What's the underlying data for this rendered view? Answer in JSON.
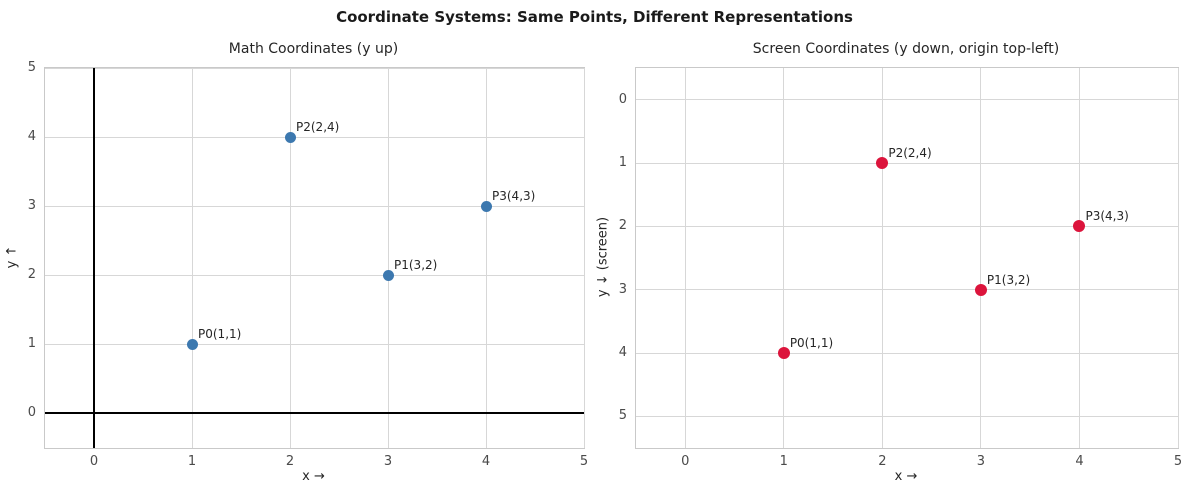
{
  "figure": {
    "title": "Coordinate Systems: Same Points, Different Representations"
  },
  "colors": {
    "background": "#ffffff",
    "grid": "#d7d7d7",
    "spine": "#c9c9c9",
    "zero_line": "#000000",
    "tick_text": "#4a4a4a",
    "label_text": "#262626",
    "title_text": "#1a1a1a",
    "math_point": "#3c78af",
    "screen_point": "#dc143c"
  },
  "chart_data": [
    {
      "type": "scatter",
      "title": "Math Coordinates (y up)",
      "xlabel": "x →",
      "ylabel": "y ↑",
      "xlim": [
        -0.5,
        5
      ],
      "ylim": [
        -0.5,
        5
      ],
      "y_inverted": false,
      "grid": true,
      "zero_axis_lines": true,
      "xticks": [
        0,
        1,
        2,
        3,
        4,
        5
      ],
      "yticks": [
        0,
        1,
        2,
        3,
        4,
        5
      ],
      "point_color": "#3c78af",
      "point_size": 11,
      "points": [
        {
          "label": "P0(1,1)",
          "x": 1,
          "y": 1
        },
        {
          "label": "P1(3,2)",
          "x": 3,
          "y": 2
        },
        {
          "label": "P2(2,4)",
          "x": 2,
          "y": 4
        },
        {
          "label": "P3(4,3)",
          "x": 4,
          "y": 3
        }
      ]
    },
    {
      "type": "scatter",
      "title": "Screen Coordinates (y down, origin top-left)",
      "xlabel": "x →",
      "ylabel": "y ↓ (screen)",
      "xlim": [
        -0.5,
        5
      ],
      "ylim": [
        -0.5,
        5.5
      ],
      "y_inverted": true,
      "grid": true,
      "zero_axis_lines": false,
      "xticks": [
        0,
        1,
        2,
        3,
        4,
        5
      ],
      "yticks": [
        0,
        1,
        2,
        3,
        4,
        5
      ],
      "point_color": "#dc143c",
      "point_size": 12,
      "points": [
        {
          "label": "P0(1,1)",
          "x": 1,
          "y": 4
        },
        {
          "label": "P1(3,2)",
          "x": 3,
          "y": 3
        },
        {
          "label": "P2(2,4)",
          "x": 2,
          "y": 1
        },
        {
          "label": "P3(4,3)",
          "x": 4,
          "y": 2
        }
      ]
    }
  ]
}
